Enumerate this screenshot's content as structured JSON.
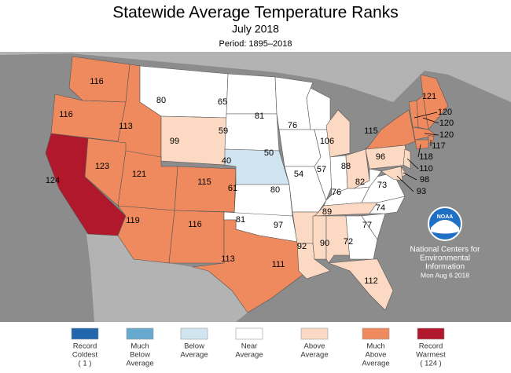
{
  "header": {
    "title": "Statewide Average Temperature Ranks",
    "subtitle": "July 2018",
    "period": "Period: 1895–2018"
  },
  "states": [
    {
      "rank": 116,
      "color": "#ee8a5e"
    },
    {
      "rank": 116,
      "color": "#ee8a5e"
    },
    {
      "rank": 113,
      "color": "#ee8a5e"
    },
    {
      "rank": 80,
      "color": "#ffffff"
    },
    {
      "rank": 99,
      "color": "#fcd9c2"
    },
    {
      "rank": 124,
      "color": "#b2182b"
    },
    {
      "rank": 123,
      "color": "#ee8a5e"
    },
    {
      "rank": 121,
      "color": "#ee8a5e"
    },
    {
      "rank": 115,
      "color": "#ee8a5e"
    },
    {
      "rank": 119,
      "color": "#ee8a5e"
    },
    {
      "rank": 116,
      "color": "#ee8a5e"
    },
    {
      "rank": 65,
      "color": "#ffffff"
    },
    {
      "rank": 59,
      "color": "#ffffff"
    },
    {
      "rank": 40,
      "color": "#d1e5f0"
    },
    {
      "rank": 61,
      "color": "#ffffff"
    },
    {
      "rank": 81,
      "color": "#ffffff"
    },
    {
      "rank": 113,
      "color": "#ee8a5e"
    },
    {
      "rank": 81,
      "color": "#ffffff"
    },
    {
      "rank": 50,
      "color": "#ffffff"
    },
    {
      "rank": 80,
      "color": "#ffffff"
    },
    {
      "rank": 97,
      "color": "#fcd9c2"
    },
    {
      "rank": 111,
      "color": "#fcd9c2"
    },
    {
      "rank": 76,
      "color": "#ffffff"
    },
    {
      "rank": 54,
      "color": "#ffffff"
    },
    {
      "rank": 106,
      "color": "#fcd9c2"
    },
    {
      "rank": 57,
      "color": "#ffffff"
    },
    {
      "rank": 88,
      "color": "#fcd9c2"
    },
    {
      "rank": 76,
      "color": "#ffffff"
    },
    {
      "rank": 89,
      "color": "#fcd9c2"
    },
    {
      "rank": 92,
      "color": "#fcd9c2"
    },
    {
      "rank": 90,
      "color": "#fcd9c2"
    },
    {
      "rank": 72,
      "color": "#ffffff"
    },
    {
      "rank": 112,
      "color": "#fcd9c2"
    },
    {
      "rank": 77,
      "color": "#ffffff"
    },
    {
      "rank": 74,
      "color": "#ffffff"
    },
    {
      "rank": 73,
      "color": "#ffffff"
    },
    {
      "rank": 82,
      "color": "#ffffff"
    },
    {
      "rank": 96,
      "color": "#fcd9c2"
    },
    {
      "rank": 115,
      "color": "#ee8a5e"
    },
    {
      "rank": 121,
      "color": "#ee8a5e"
    },
    {
      "rank": 120,
      "color": "#ee8a5e"
    },
    {
      "rank": 120,
      "color": "#ee8a5e"
    },
    {
      "rank": 120,
      "color": "#ee8a5e"
    },
    {
      "rank": 117,
      "color": "#ee8a5e"
    },
    {
      "rank": 118,
      "color": "#ee8a5e"
    },
    {
      "rank": 110,
      "color": "#fcd9c2"
    },
    {
      "rank": 98,
      "color": "#fcd9c2"
    },
    {
      "rank": 93,
      "color": "#fcd9c2"
    }
  ],
  "legend": [
    {
      "lines": [
        "Record",
        "Coldest",
        "( 1 )"
      ],
      "color": "#2166ac"
    },
    {
      "lines": [
        "Much",
        "Below",
        "Average"
      ],
      "color": "#67a9cf"
    },
    {
      "lines": [
        "Below",
        "Average"
      ],
      "color": "#d1e5f0"
    },
    {
      "lines": [
        "Near",
        "Average"
      ],
      "color": "#ffffff"
    },
    {
      "lines": [
        "Above",
        "Average"
      ],
      "color": "#fcd9c2"
    },
    {
      "lines": [
        "Much",
        "Above",
        "Average"
      ],
      "color": "#ee8a5e"
    },
    {
      "lines": [
        "Record",
        "Warmest",
        "( 124 )"
      ],
      "color": "#b2182b"
    }
  ],
  "credit": {
    "logo": "NOAA",
    "lines": [
      "National Centers for",
      "Environmental",
      "Information",
      "Mon Aug  6 2018"
    ]
  }
}
